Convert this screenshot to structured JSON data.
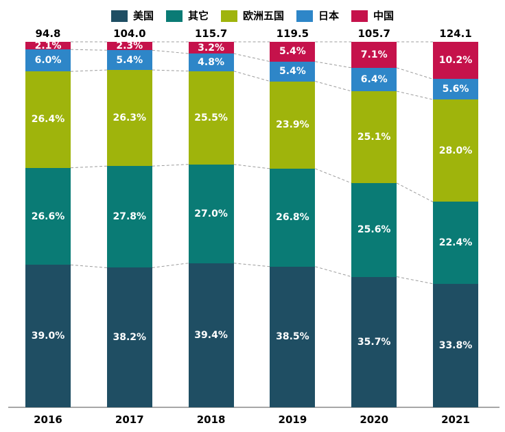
{
  "chart_data": {
    "type": "bar",
    "variant": "stacked-100-percent",
    "title": "",
    "xlabel": "",
    "ylabel": "",
    "legend_position": "top",
    "grid": false,
    "connector_lines": true,
    "categories": [
      "2016",
      "2017",
      "2018",
      "2019",
      "2020",
      "2021"
    ],
    "totals": [
      "94.8",
      "104.0",
      "115.7",
      "119.5",
      "105.7",
      "124.1"
    ],
    "series": [
      {
        "id": "usa",
        "name": "美国",
        "color": "#1F4E63",
        "values": [
          39.0,
          38.2,
          39.4,
          38.5,
          35.7,
          33.8
        ]
      },
      {
        "id": "other",
        "name": "其它",
        "color": "#0A7B75",
        "values": [
          26.6,
          27.8,
          27.0,
          26.8,
          25.6,
          22.4
        ]
      },
      {
        "id": "europe5",
        "name": "欧洲五国",
        "color": "#9FB40C",
        "values": [
          26.4,
          26.3,
          25.5,
          23.9,
          25.1,
          28.0
        ]
      },
      {
        "id": "japan",
        "name": "日本",
        "color": "#2E86C8",
        "values": [
          6.0,
          5.4,
          4.8,
          5.4,
          6.4,
          5.6
        ]
      },
      {
        "id": "china",
        "name": "中国",
        "color": "#C5124B",
        "values": [
          2.1,
          2.3,
          3.2,
          5.4,
          7.1,
          10.2
        ]
      }
    ],
    "value_label_suffix": "%",
    "colors": {
      "axis_line": "#A6A6A6",
      "connector_line": "#9B9B9B",
      "label_text": "#000000",
      "segment_text": "#FFFFFF",
      "background": "#FFFFFF"
    }
  }
}
